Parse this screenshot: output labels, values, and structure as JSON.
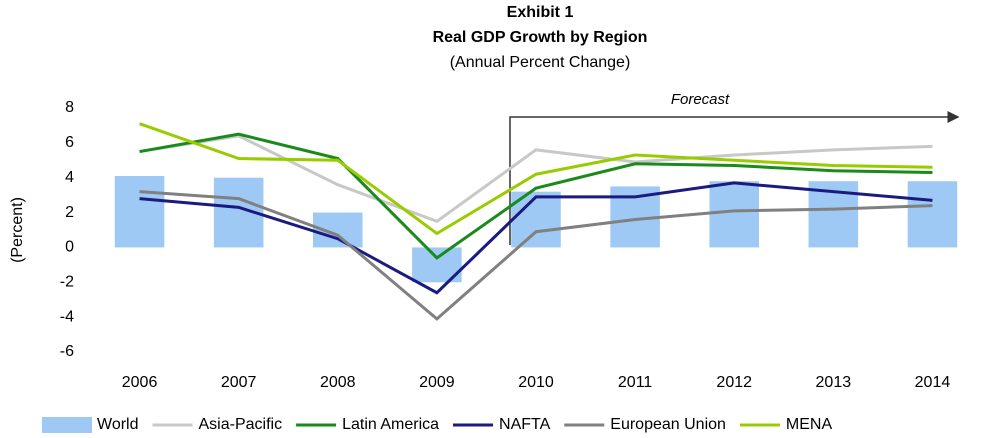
{
  "chart_data": {
    "type": "combo",
    "title": "Exhibit 1",
    "subtitle": "Real GDP Growth by Region",
    "note": "(Annual Percent Change)",
    "y_label": "(Percent)",
    "annotation": "Forecast",
    "categories": [
      "2006",
      "2007",
      "2008",
      "2009",
      "2010",
      "2011",
      "2012",
      "2013",
      "2014"
    ],
    "ylim": [
      -6,
      8
    ],
    "yticks": [
      -6,
      -4,
      -2,
      0,
      2,
      4,
      6,
      8
    ],
    "series": [
      {
        "name": "World",
        "type": "bar",
        "color": "#9ec9f5",
        "values": [
          4.1,
          4.0,
          2.0,
          -2.0,
          3.2,
          3.5,
          3.8,
          3.8,
          3.8
        ]
      },
      {
        "name": "Asia-Pacific",
        "type": "line",
        "color": "#c8c8c8",
        "values": [
          5.5,
          6.4,
          3.6,
          1.5,
          5.6,
          4.9,
          5.3,
          5.6,
          5.8
        ]
      },
      {
        "name": "Latin America",
        "type": "line",
        "color": "#1a8a1a",
        "values": [
          5.5,
          6.5,
          5.1,
          -0.6,
          3.4,
          4.8,
          4.7,
          4.4,
          4.3
        ]
      },
      {
        "name": "NAFTA",
        "type": "line",
        "color": "#1a1a80",
        "values": [
          2.8,
          2.3,
          0.5,
          -2.6,
          2.9,
          2.9,
          3.7,
          3.2,
          2.7
        ]
      },
      {
        "name": "European Union",
        "type": "line",
        "color": "#808080",
        "values": [
          3.2,
          2.8,
          0.7,
          -4.1,
          0.9,
          1.6,
          2.1,
          2.2,
          2.4
        ]
      },
      {
        "name": "MENA",
        "type": "line",
        "color": "#99cc00",
        "values": [
          7.1,
          5.1,
          5.0,
          0.8,
          4.2,
          5.3,
          5.0,
          4.7,
          4.6
        ]
      }
    ]
  }
}
